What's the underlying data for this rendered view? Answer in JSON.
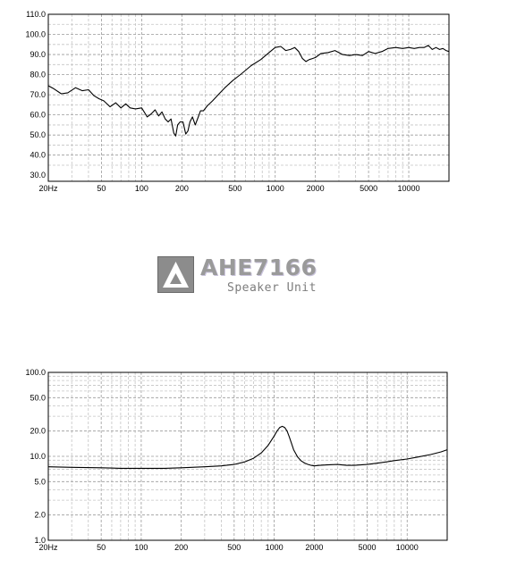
{
  "logo": {
    "title": "AHE7166",
    "subtitle": "Speaker Unit"
  },
  "chart_data": [
    {
      "type": "line",
      "xscale": "log",
      "xlim": [
        20,
        20000
      ],
      "ylim": [
        27,
        110
      ],
      "grid": true,
      "x_ticks": [
        "20Hz",
        "50",
        "100",
        "200",
        "500",
        "1000",
        "2000",
        "5000",
        "10000"
      ],
      "x_tick_values": [
        20,
        50,
        100,
        200,
        500,
        1000,
        2000,
        5000,
        10000
      ],
      "y_ticks": [
        "30.0",
        "40.0",
        "50.0",
        "60.0",
        "70.0",
        "80.0",
        "90.0",
        "100.0",
        "110.0"
      ],
      "y_tick_values": [
        30,
        40,
        50,
        60,
        70,
        80,
        90,
        100,
        110
      ],
      "series": [
        {
          "x": [
            20,
            22,
            25,
            28,
            32,
            36,
            40,
            44,
            48,
            52,
            58,
            64,
            70,
            76,
            82,
            90,
            100,
            110,
            118,
            126,
            134,
            142,
            150,
            158,
            166,
            174,
            180,
            186,
            194,
            204,
            214,
            222,
            230,
            240,
            252,
            264,
            276,
            290,
            310,
            340,
            380,
            420,
            480,
            560,
            660,
            780,
            900,
            1000,
            1100,
            1200,
            1300,
            1400,
            1500,
            1600,
            1700,
            1800,
            1900,
            2000,
            2200,
            2500,
            2800,
            3200,
            3600,
            4000,
            4500,
            5000,
            5600,
            6300,
            7000,
            8000,
            9000,
            10000,
            11000,
            12000,
            13000,
            14000,
            15000,
            16000,
            17000,
            18000,
            19000,
            20000
          ],
          "y": [
            74.5,
            73,
            70.5,
            71,
            73.5,
            72,
            72.5,
            69.5,
            68,
            67,
            64,
            66,
            63.5,
            65.5,
            63.5,
            63,
            63.5,
            59,
            60.5,
            62.5,
            59.5,
            61.5,
            58,
            56.5,
            58,
            51,
            49.5,
            55,
            56.5,
            56.5,
            50.5,
            52,
            56.5,
            59,
            55,
            58.5,
            62,
            62,
            64.5,
            67,
            70.5,
            73.5,
            77,
            80.5,
            84.5,
            87.5,
            91,
            93.5,
            94,
            92,
            92.5,
            93.5,
            91.5,
            88,
            86.5,
            87.5,
            88,
            88.5,
            90.5,
            91,
            92,
            90,
            89.5,
            90,
            89.5,
            91.5,
            90.5,
            91.5,
            93,
            93.5,
            93,
            93.5,
            93,
            93.5,
            93.5,
            94.5,
            92.5,
            93.5,
            92.5,
            93,
            92,
            91.5
          ]
        }
      ]
    },
    {
      "type": "line",
      "xscale": "log",
      "yscale": "log",
      "xlim": [
        20,
        20000
      ],
      "ylim": [
        1,
        100
      ],
      "grid": true,
      "x_ticks": [
        "20Hz",
        "50",
        "100",
        "200",
        "500",
        "1000",
        "2000",
        "5000",
        "10000"
      ],
      "x_tick_values": [
        20,
        50,
        100,
        200,
        500,
        1000,
        2000,
        5000,
        10000
      ],
      "y_ticks": [
        "1.0",
        "2.0",
        "5.0",
        "10.0",
        "20.0",
        "50.0",
        "100.0"
      ],
      "y_tick_values": [
        1,
        2,
        5,
        10,
        20,
        50,
        100
      ],
      "series": [
        {
          "x": [
            20,
            30,
            50,
            70,
            100,
            150,
            200,
            300,
            400,
            500,
            600,
            700,
            800,
            900,
            1000,
            1050,
            1100,
            1150,
            1200,
            1250,
            1300,
            1350,
            1400,
            1500,
            1600,
            1700,
            1800,
            1900,
            2000,
            2200,
            2500,
            3000,
            3500,
            4000,
            5000,
            6000,
            7000,
            8000,
            10000,
            12000,
            15000,
            18000,
            20000
          ],
          "y": [
            7.5,
            7.4,
            7.3,
            7.2,
            7.2,
            7.2,
            7.3,
            7.5,
            7.7,
            8.0,
            8.6,
            9.5,
            11.0,
            13.5,
            17.5,
            20.0,
            22.0,
            22.8,
            22.0,
            20.0,
            17.0,
            14.2,
            12.0,
            9.8,
            8.8,
            8.3,
            8.0,
            7.8,
            7.7,
            7.8,
            7.9,
            8.0,
            7.8,
            7.8,
            8.0,
            8.3,
            8.6,
            8.9,
            9.3,
            9.8,
            10.5,
            11.3,
            12.0
          ]
        }
      ]
    }
  ]
}
